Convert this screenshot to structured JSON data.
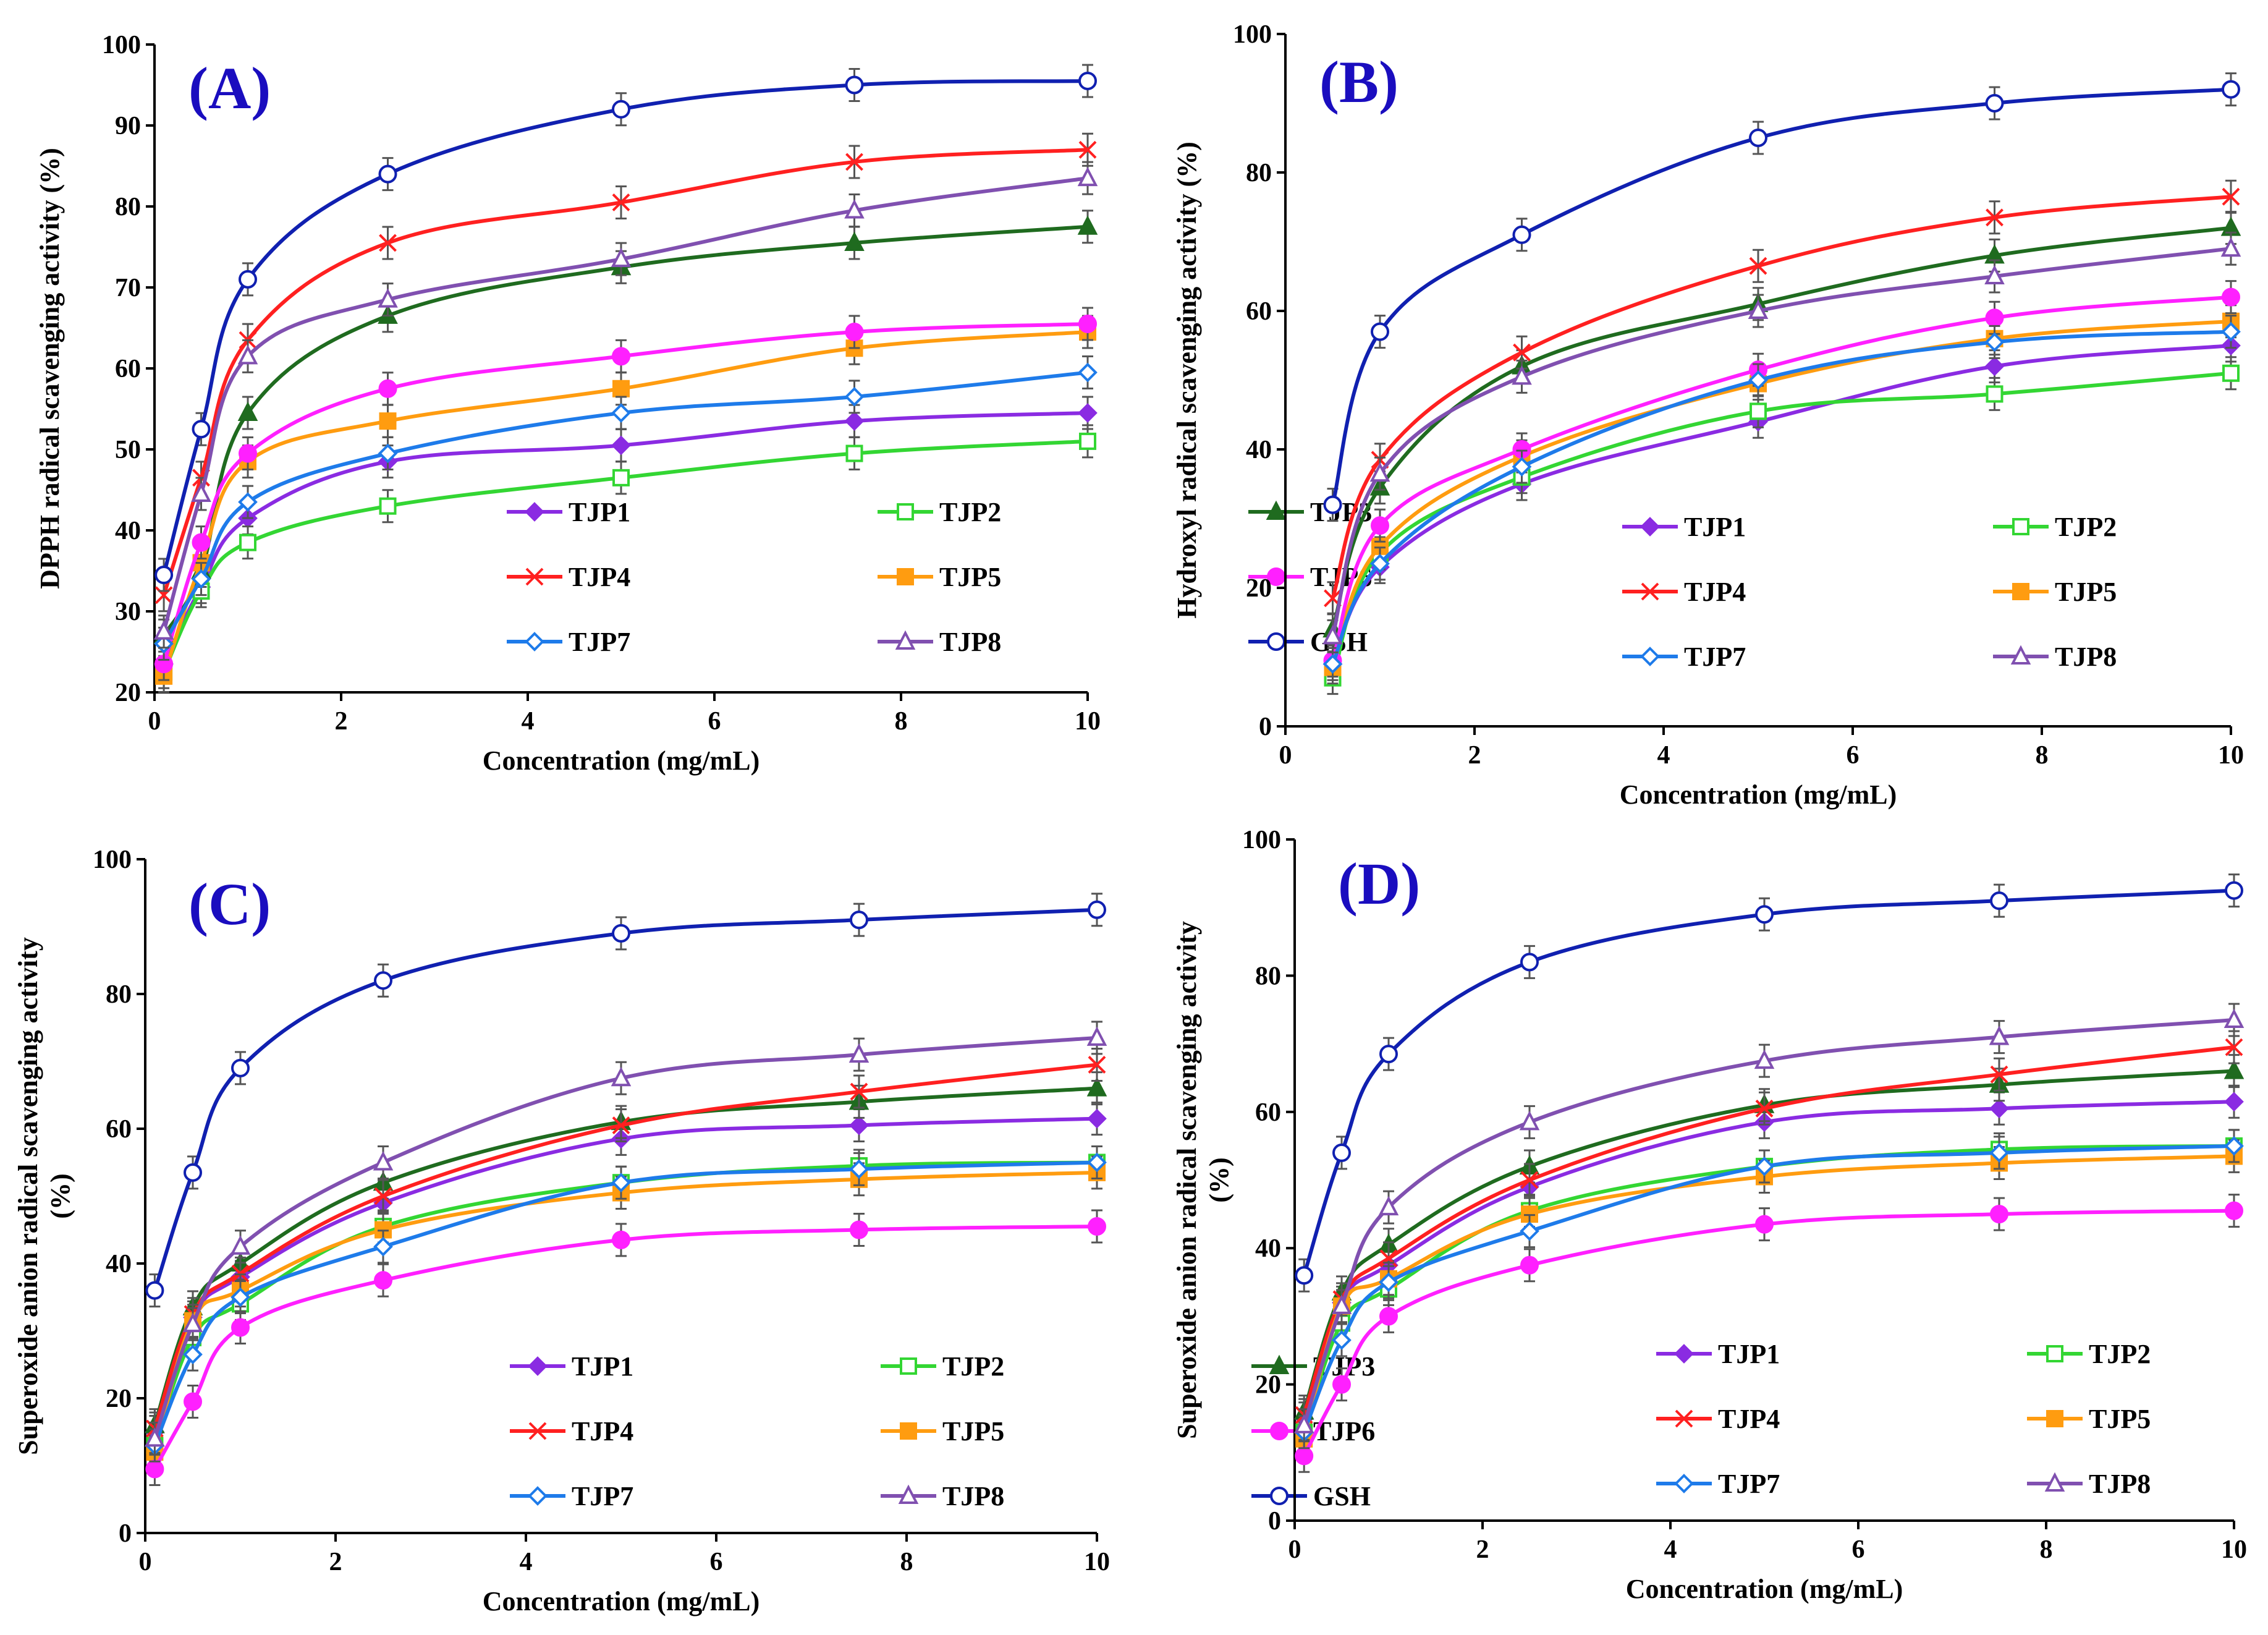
{
  "styles": {
    "TJP1": {
      "color": "#8a2be2",
      "marker": "diamond-filled"
    },
    "TJP2": {
      "color": "#33d633",
      "marker": "square-open"
    },
    "TJP3": {
      "color": "#1f6b1f",
      "marker": "triangle-filled"
    },
    "TJP4": {
      "color": "#ff2020",
      "marker": "x"
    },
    "TJP5": {
      "color": "#ff9c10",
      "marker": "square-filled"
    },
    "TJP6": {
      "color": "#ff20ff",
      "marker": "circle-filled"
    },
    "TJP7": {
      "color": "#1e7bea",
      "marker": "diamond-open"
    },
    "TJP8": {
      "color": "#8050b0",
      "marker": "triangle-open"
    },
    "GSH": {
      "color": "#1020b0",
      "marker": "circle-open"
    }
  },
  "chart_data": [
    {
      "type": "line",
      "panel_label": "(A)",
      "xlabel": "Concentration (mg/mL)",
      "ylabel": "DPPH radical scavenging activity (%)",
      "ylabel_lines": [
        "DPPH radical scavenging activity (%)"
      ],
      "xlim": [
        0,
        10
      ],
      "ylim": [
        20,
        100
      ],
      "xticks": [
        0,
        2,
        4,
        6,
        8,
        10
      ],
      "xtick_labels": [
        "0",
        "2",
        "4",
        "6",
        "8",
        "10"
      ],
      "yticks": [
        20,
        30,
        40,
        50,
        60,
        70,
        80,
        90,
        100
      ],
      "ytick_labels": [
        "20",
        "30",
        "40",
        "50",
        "60",
        "70",
        "80",
        "90",
        "100"
      ],
      "legend_position": "lower-right",
      "x": [
        0.1,
        0.5,
        1,
        2.5,
        5,
        7.5,
        10
      ],
      "series": [
        {
          "name": "TJP1",
          "values": [
            23.5,
            33,
            41.5,
            48.5,
            50.5,
            53.5,
            54.5
          ]
        },
        {
          "name": "TJP2",
          "values": [
            22.5,
            32.5,
            38.5,
            43,
            46.5,
            49.5,
            51
          ]
        },
        {
          "name": "TJP3",
          "values": [
            27,
            35,
            54.5,
            66.5,
            72.5,
            75.5,
            77.5
          ]
        },
        {
          "name": "TJP4",
          "values": [
            32,
            46.5,
            63.5,
            75.5,
            80.5,
            85.5,
            87
          ]
        },
        {
          "name": "TJP5",
          "values": [
            22,
            36,
            48.5,
            53.5,
            57.5,
            62.5,
            64.5
          ]
        },
        {
          "name": "TJP6",
          "values": [
            23.5,
            38.5,
            49.5,
            57.5,
            61.5,
            64.5,
            65.5
          ]
        },
        {
          "name": "TJP7",
          "values": [
            26,
            34,
            43.5,
            49.5,
            54.5,
            56.5,
            59.5
          ]
        },
        {
          "name": "TJP8",
          "values": [
            27.5,
            44.5,
            61.5,
            68.5,
            73.5,
            79.5,
            83.5
          ]
        },
        {
          "name": "GSH",
          "values": [
            34.5,
            52.5,
            71,
            84,
            92,
            95,
            95.5
          ]
        }
      ]
    },
    {
      "type": "line",
      "panel_label": "(B)",
      "xlabel": "Concentration (mg/mL)",
      "ylabel": "Hydroxyl radical scavenging activity (%)",
      "ylabel_lines": [
        "Hydroxyl radical scavenging activity (%)"
      ],
      "xlim": [
        0,
        10
      ],
      "ylim": [
        0,
        100
      ],
      "xticks": [
        0,
        2,
        4,
        6,
        8,
        10
      ],
      "xtick_labels": [
        "0",
        "2",
        "4",
        "6",
        "8",
        "10"
      ],
      "yticks": [
        0,
        20,
        40,
        60,
        80,
        100
      ],
      "ytick_labels": [
        "0",
        "20",
        "40",
        "60",
        "80",
        "100"
      ],
      "legend_position": "lower-right",
      "x": [
        0.5,
        1,
        2.5,
        5,
        7.5,
        10
      ],
      "series": [
        {
          "name": "TJP1",
          "values": [
            9,
            23,
            35,
            44,
            52,
            55
          ]
        },
        {
          "name": "TJP2",
          "values": [
            7,
            25,
            36,
            45.5,
            48,
            51
          ]
        },
        {
          "name": "TJP3",
          "values": [
            14,
            34.5,
            52,
            61,
            68,
            72
          ]
        },
        {
          "name": "TJP4",
          "values": [
            18.5,
            38.5,
            54,
            66.5,
            73.5,
            76.5
          ]
        },
        {
          "name": "TJP5",
          "values": [
            8.5,
            26,
            39,
            49.5,
            56,
            58.5
          ]
        },
        {
          "name": "TJP6",
          "values": [
            9.5,
            29,
            40,
            51.5,
            59,
            62
          ]
        },
        {
          "name": "TJP7",
          "values": [
            9,
            23.5,
            37.5,
            50,
            55.5,
            57
          ]
        },
        {
          "name": "TJP8",
          "values": [
            13,
            36.5,
            50.5,
            60,
            65,
            69
          ]
        },
        {
          "name": "GSH",
          "values": [
            32,
            57,
            71,
            85,
            90,
            92
          ]
        }
      ]
    },
    {
      "type": "line",
      "panel_label": "(C)",
      "xlabel": "Concentration (mg/mL)",
      "ylabel": "Superoxide anion radical scavenging activity (%)",
      "ylabel_lines": [
        "Superoxide anion radical scavenging activity",
        "(%)"
      ],
      "xlim": [
        0,
        10
      ],
      "ylim": [
        0,
        100
      ],
      "xticks": [
        0,
        2,
        4,
        6,
        8,
        10
      ],
      "xtick_labels": [
        "0",
        "2",
        "4",
        "6",
        "8",
        "10"
      ],
      "yticks": [
        0,
        20,
        40,
        60,
        80,
        100
      ],
      "ytick_labels": [
        "0",
        "20",
        "40",
        "60",
        "80",
        "100"
      ],
      "legend_position": "lower-right",
      "x": [
        0.1,
        0.5,
        1,
        2.5,
        5,
        7.5,
        10
      ],
      "series": [
        {
          "name": "TJP1",
          "values": [
            15,
            32,
            38,
            49,
            58.5,
            60.5,
            61.5
          ]
        },
        {
          "name": "TJP2",
          "values": [
            13,
            29,
            34,
            45.5,
            52,
            54.5,
            55
          ]
        },
        {
          "name": "TJP3",
          "values": [
            16,
            33.5,
            40,
            52,
            61,
            64,
            66
          ]
        },
        {
          "name": "TJP4",
          "values": [
            15.5,
            32.5,
            38.5,
            50,
            60.5,
            65.5,
            69.5
          ]
        },
        {
          "name": "TJP5",
          "values": [
            12,
            31.5,
            36,
            45,
            50.5,
            52.5,
            53.5
          ]
        },
        {
          "name": "TJP6",
          "values": [
            9.5,
            19.5,
            30.5,
            37.5,
            43.5,
            45,
            45.5
          ]
        },
        {
          "name": "TJP7",
          "values": [
            13,
            26.5,
            35,
            42.5,
            52,
            54,
            55
          ]
        },
        {
          "name": "TJP8",
          "values": [
            14,
            31,
            42.5,
            55,
            67.5,
            71,
            73.5
          ]
        },
        {
          "name": "GSH",
          "values": [
            36,
            53.5,
            69,
            82,
            89,
            91,
            92.5
          ]
        }
      ]
    },
    {
      "type": "line",
      "panel_label": "(D)",
      "xlabel": "Concentration (mg/mL)",
      "ylabel": "Superoxide anion radical scavenging activity (%)",
      "ylabel_lines": [
        "Superoxide anion radical scavenging activity",
        "(%)"
      ],
      "xlim": [
        0,
        10
      ],
      "ylim": [
        0,
        100
      ],
      "xticks": [
        0,
        2,
        4,
        6,
        8,
        10
      ],
      "xtick_labels": [
        "0",
        "2",
        "4",
        "6",
        "8",
        "10"
      ],
      "yticks": [
        0,
        20,
        40,
        60,
        80,
        100
      ],
      "ytick_labels": [
        "0",
        "20",
        "40",
        "60",
        "80",
        "100"
      ],
      "legend_position": "lower-right",
      "x": [
        0.1,
        0.5,
        1,
        2.5,
        5,
        7.5,
        10
      ],
      "series": [
        {
          "name": "TJP1",
          "values": [
            15,
            32,
            37.5,
            49,
            58.5,
            60.5,
            61.5
          ]
        },
        {
          "name": "TJP2",
          "values": [
            13,
            29,
            34,
            45.5,
            52,
            54.5,
            55
          ]
        },
        {
          "name": "TJP3",
          "values": [
            16,
            33.5,
            40.5,
            52,
            61,
            64,
            66
          ]
        },
        {
          "name": "TJP4",
          "values": [
            15.5,
            32.5,
            38.5,
            50,
            60.5,
            65.5,
            69.5
          ]
        },
        {
          "name": "TJP5",
          "values": [
            12,
            31.5,
            35.5,
            45,
            50.5,
            52.5,
            53.5
          ]
        },
        {
          "name": "TJP6",
          "values": [
            9.5,
            20,
            30,
            37.5,
            43.5,
            45,
            45.5
          ]
        },
        {
          "name": "TJP7",
          "values": [
            13,
            26.5,
            35,
            42.5,
            52,
            54,
            55
          ]
        },
        {
          "name": "TJP8",
          "values": [
            14,
            31.5,
            46,
            58.5,
            67.5,
            71,
            73.5
          ]
        },
        {
          "name": "GSH",
          "values": [
            36,
            54,
            68.5,
            82,
            89,
            91,
            92.5
          ]
        }
      ]
    }
  ]
}
